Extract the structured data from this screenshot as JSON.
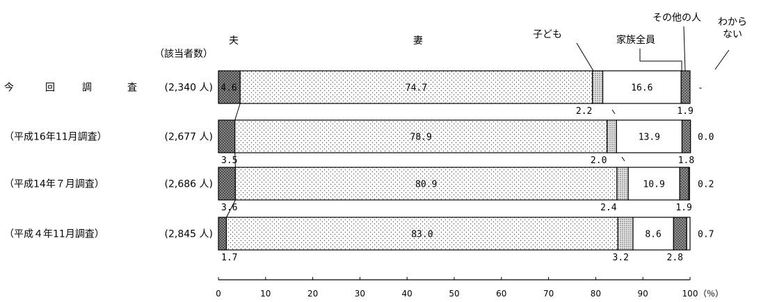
{
  "chart_data": {
    "type": "stacked-bar-horizontal",
    "count_header": "（該当者数）",
    "unit_label": "（％）",
    "categories": [
      {
        "name": "今　　回　　調　　査",
        "count": "(2,340 人)"
      },
      {
        "name": "（平成16年11月調査）",
        "count": "(2,677 人)"
      },
      {
        "name": "（平成14年７月調査）",
        "count": "(2,686 人)"
      },
      {
        "name": "（平成４年11月調査）",
        "count": "(2,845 人)"
      }
    ],
    "series": [
      {
        "name": "夫",
        "pattern": "crosshatch",
        "values": [
          4.6,
          3.5,
          3.6,
          1.7
        ],
        "labels": [
          "4.6",
          "3.5",
          "3.6",
          "1.7"
        ]
      },
      {
        "name": "妻",
        "pattern": "sparse-dots",
        "values": [
          74.7,
          78.9,
          80.9,
          83.0
        ],
        "labels": [
          "74.7",
          "78.9",
          "80.9",
          "83.0"
        ]
      },
      {
        "name": "子ども",
        "pattern": "dense-dots",
        "values": [
          2.2,
          2.0,
          2.4,
          3.2
        ],
        "labels": [
          "2.2",
          "2.0",
          "2.4",
          "3.2"
        ]
      },
      {
        "name": "家族全員",
        "pattern": "blank",
        "values": [
          16.6,
          13.9,
          10.9,
          8.6
        ],
        "labels": [
          "16.6",
          "13.9",
          "10.9",
          "8.6"
        ]
      },
      {
        "name": "その他の人",
        "pattern": "dark-dots",
        "values": [
          1.9,
          1.8,
          1.9,
          2.8
        ],
        "labels": [
          "1.9",
          "1.8",
          "1.9",
          "2.8"
        ]
      },
      {
        "name": "わから\nない",
        "pattern": "blank",
        "values": [
          0,
          0.0,
          0.2,
          0.7
        ],
        "labels": [
          "-",
          "0.0",
          "0.2",
          "0.7"
        ]
      }
    ],
    "xlim": [
      0,
      100
    ],
    "xticks": [
      0,
      10,
      20,
      30,
      40,
      50,
      60,
      70,
      80,
      90,
      100
    ],
    "grid": false,
    "legend": "labels above top bar"
  }
}
